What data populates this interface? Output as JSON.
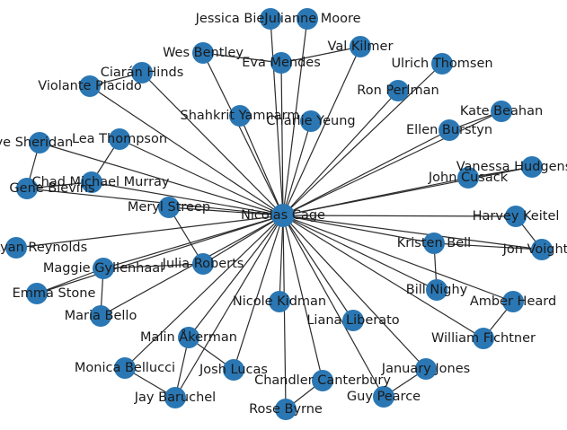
{
  "diagram": {
    "node_color": "#2a77b4",
    "edge_color": "#2b2b2b",
    "center": "Nicolas Cage",
    "nodes": [
      "Nicolas Cage",
      "Jessica Biel",
      "Julianne Moore",
      "Eva Mendes",
      "Wes Bentley",
      "Val Kilmer",
      "Ciarán Hinds",
      "Violante Placido",
      "Ulrich Thomsen",
      "Ron Perlman",
      "Shahkrit Yamnarm",
      "Charlie Yeung",
      "Kate Beahan",
      "Ellen Burstyn",
      "Faye Sheridan",
      "Lea Thompson",
      "Vanessa Hudgens",
      "John Cusack",
      "Chad Michael Murray",
      "Gene Blevins",
      "Meryl Streep",
      "Harvey Keitel",
      "Jon Voight",
      "Ryan Reynolds",
      "Kristen Bell",
      "Maggie Gyllenhaal",
      "Julia Roberts",
      "Emma Stone",
      "Bill Nighy",
      "Amber Heard",
      "Nicole Kidman",
      "Liana Liberato",
      "Maria Bello",
      "William Fichtner",
      "Malin Åkerman",
      "Monica Bellucci",
      "Josh Lucas",
      "Chandler Canterbury",
      "January Jones",
      "Jay Baruchel",
      "Guy Pearce",
      "Rose Byrne"
    ],
    "labels": {
      "Nicolas Cage": "Nicolas Cage",
      "Jessica Biel": "Jessica Biel",
      "Julianne Moore": "Julianne Moore",
      "Eva Mendes": "Eva Mendes",
      "Wes Bentley": "Wes Bentley",
      "Val Kilmer": "Val Kilmer",
      "Ciarán Hinds": "Ciarán Hinds",
      "Violante Placido": "Violante Placido",
      "Ulrich Thomsen": "Ulrich Thomsen",
      "Ron Perlman": "Ron Perlman",
      "Shahkrit Yamnarm": "Shahkrit Yamnarm",
      "Charlie Yeung": "Charlie Yeung",
      "Kate Beahan": "Kate Beahan",
      "Ellen Burstyn": "Ellen Burstyn",
      "Faye Sheridan": "Faye Sheridan",
      "Lea Thompson": "Lea Thompson",
      "Vanessa Hudgens": "Vanessa Hudgens",
      "John Cusack": "John Cusack",
      "Chad Michael Murray": "Chad Michael Murray",
      "Gene Blevins": "Gene Blevins",
      "Meryl Streep": "Meryl Streep",
      "Harvey Keitel": "Harvey Keitel",
      "Jon Voight": "Jon Voight",
      "Ryan Reynolds": "Ryan Reynolds",
      "Kristen Bell": "Kristen Bell",
      "Maggie Gyllenhaal": "Maggie Gyllenhaal",
      "Julia Roberts": "Julia Roberts",
      "Emma Stone": "Emma Stone",
      "Bill Nighy": "Bill Nighy",
      "Amber Heard": "Amber Heard",
      "Nicole Kidman": "Nicole Kidman",
      "Liana Liberato": "Liana Liberato",
      "Maria Bello": "Maria Bello",
      "William Fichtner": "William Fichtner",
      "Malin Åkerman": "Malin Åkerman",
      "Monica Bellucci": "Monica Bellucci",
      "Josh Lucas": "Josh Lucas",
      "Chandler Canterbury": "Chandler Canterbury",
      "January Jones": "January Jones",
      "Jay Baruchel": "Jay Baruchel",
      "Guy Pearce": "Guy Pearce",
      "Rose Byrne": "Rose Byrne"
    },
    "edges": [
      [
        "Nicolas Cage",
        "Jessica Biel"
      ],
      [
        "Nicolas Cage",
        "Julianne Moore"
      ],
      [
        "Nicolas Cage",
        "Eva Mendes"
      ],
      [
        "Nicolas Cage",
        "Wes Bentley"
      ],
      [
        "Nicolas Cage",
        "Val Kilmer"
      ],
      [
        "Nicolas Cage",
        "Ciarán Hinds"
      ],
      [
        "Nicolas Cage",
        "Violante Placido"
      ],
      [
        "Nicolas Cage",
        "Ulrich Thomsen"
      ],
      [
        "Nicolas Cage",
        "Ron Perlman"
      ],
      [
        "Nicolas Cage",
        "Shahkrit Yamnarm"
      ],
      [
        "Nicolas Cage",
        "Charlie Yeung"
      ],
      [
        "Nicolas Cage",
        "Kate Beahan"
      ],
      [
        "Nicolas Cage",
        "Ellen Burstyn"
      ],
      [
        "Nicolas Cage",
        "Faye Sheridan"
      ],
      [
        "Nicolas Cage",
        "Lea Thompson"
      ],
      [
        "Nicolas Cage",
        "Vanessa Hudgens"
      ],
      [
        "Nicolas Cage",
        "John Cusack"
      ],
      [
        "Nicolas Cage",
        "Chad Michael Murray"
      ],
      [
        "Nicolas Cage",
        "Gene Blevins"
      ],
      [
        "Nicolas Cage",
        "Meryl Streep"
      ],
      [
        "Nicolas Cage",
        "Harvey Keitel"
      ],
      [
        "Nicolas Cage",
        "Jon Voight"
      ],
      [
        "Nicolas Cage",
        "Ryan Reynolds"
      ],
      [
        "Nicolas Cage",
        "Kristen Bell"
      ],
      [
        "Nicolas Cage",
        "Maggie Gyllenhaal"
      ],
      [
        "Nicolas Cage",
        "Julia Roberts"
      ],
      [
        "Nicolas Cage",
        "Emma Stone"
      ],
      [
        "Nicolas Cage",
        "Bill Nighy"
      ],
      [
        "Nicolas Cage",
        "Amber Heard"
      ],
      [
        "Nicolas Cage",
        "Nicole Kidman"
      ],
      [
        "Nicolas Cage",
        "Liana Liberato"
      ],
      [
        "Nicolas Cage",
        "Maria Bello"
      ],
      [
        "Nicolas Cage",
        "William Fichtner"
      ],
      [
        "Nicolas Cage",
        "Malin Åkerman"
      ],
      [
        "Nicolas Cage",
        "Monica Bellucci"
      ],
      [
        "Nicolas Cage",
        "Josh Lucas"
      ],
      [
        "Nicolas Cage",
        "Chandler Canterbury"
      ],
      [
        "Nicolas Cage",
        "January Jones"
      ],
      [
        "Nicolas Cage",
        "Jay Baruchel"
      ],
      [
        "Nicolas Cage",
        "Guy Pearce"
      ],
      [
        "Nicolas Cage",
        "Rose Byrne"
      ],
      [
        "Wes Bentley",
        "Eva Mendes"
      ],
      [
        "Eva Mendes",
        "Val Kilmer"
      ],
      [
        "Ciarán Hinds",
        "Violante Placido"
      ],
      [
        "Kate Beahan",
        "Ellen Burstyn"
      ],
      [
        "Faye Sheridan",
        "Gene Blevins"
      ],
      [
        "Lea Thompson",
        "Chad Michael Murray"
      ],
      [
        "Chad Michael Murray",
        "Gene Blevins"
      ],
      [
        "Vanessa Hudgens",
        "John Cusack"
      ],
      [
        "Harvey Keitel",
        "Jon Voight"
      ],
      [
        "Kristen Bell",
        "Jon Voight"
      ],
      [
        "Kristen Bell",
        "Bill Nighy"
      ],
      [
        "Meryl Streep",
        "Julia Roberts"
      ],
      [
        "Maggie Gyllenhaal",
        "Julia Roberts"
      ],
      [
        "Maggie Gyllenhaal",
        "Emma Stone"
      ],
      [
        "Maggie Gyllenhaal",
        "Maria Bello"
      ],
      [
        "Amber Heard",
        "William Fichtner"
      ],
      [
        "Malin Åkerman",
        "Josh Lucas"
      ],
      [
        "Malin Åkerman",
        "Jay Baruchel"
      ],
      [
        "Monica Bellucci",
        "Jay Baruchel"
      ],
      [
        "January Jones",
        "Guy Pearce"
      ],
      [
        "Chandler Canterbury",
        "Rose Byrne"
      ]
    ]
  }
}
